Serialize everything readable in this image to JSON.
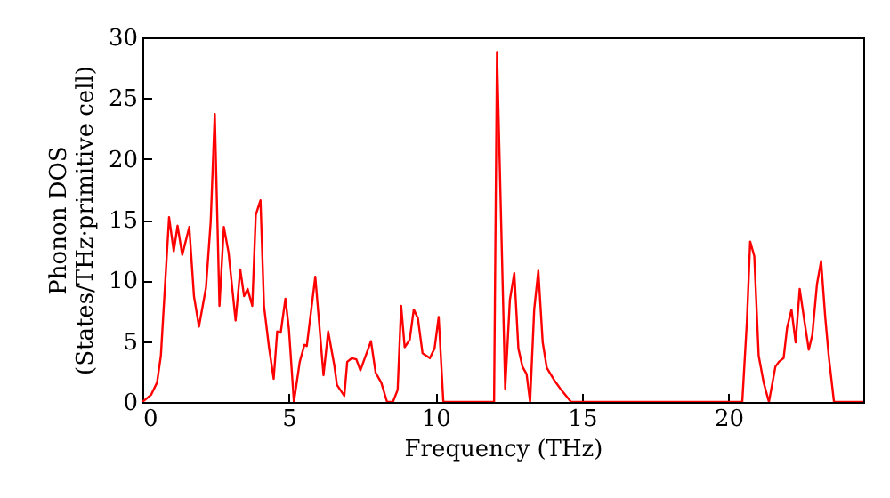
{
  "chart_data": {
    "type": "line",
    "xlabel": "Frequency (THz)",
    "ylabel": "Phonon DOS\n(States/THz·primitive cell)",
    "xlim": [
      0,
      24.6
    ],
    "ylim": [
      0,
      30
    ],
    "xticks": [
      0,
      5,
      10,
      15,
      20
    ],
    "yticks": [
      0,
      5,
      10,
      15,
      20,
      25,
      30
    ],
    "grid": false,
    "marker": "none",
    "line_style": "solid",
    "series": [
      {
        "color": "#ff0000",
        "x": [
          0,
          0.3,
          0.5,
          0.63,
          0.91,
          1.07,
          1.2,
          1.36,
          1.6,
          1.76,
          1.93,
          2.17,
          2.33,
          2.47,
          2.63,
          2.78,
          2.94,
          3.18,
          3.34,
          3.47,
          3.59,
          3.75,
          3.87,
          4.03,
          4.15,
          4.32,
          4.48,
          4.6,
          4.72,
          4.88,
          5.0,
          5.17,
          5.37,
          5.53,
          5.61,
          5.9,
          6.18,
          6.34,
          6.55,
          6.64,
          6.89,
          6.99,
          7.15,
          7.3,
          7.44,
          7.8,
          7.96,
          8.15,
          8.35,
          8.55,
          8.71,
          8.83,
          8.95,
          9.12,
          9.26,
          9.4,
          9.56,
          9.81,
          9.97,
          10.11,
          10.27,
          12.0,
          12.1,
          12.38,
          12.54,
          12.69,
          12.83,
          12.97,
          13.11,
          13.23,
          13.37,
          13.51,
          13.66,
          13.8,
          14.08,
          14.29,
          14.63,
          20.47,
          20.63,
          20.74,
          20.88,
          21.03,
          21.2,
          21.38,
          21.6,
          21.72,
          21.88,
          22.0,
          22.15,
          22.29,
          22.43,
          22.6,
          22.74,
          22.86,
          23.02,
          23.16,
          23.3,
          23.42,
          23.6,
          24.6
        ],
        "values": [
          0,
          0.6,
          1.6,
          3.8,
          15.2,
          12.4,
          14.5,
          12.1,
          14.4,
          8.7,
          6.2,
          9.4,
          14.8,
          23.7,
          7.9,
          14.4,
          12.3,
          6.7,
          10.9,
          8.7,
          9.3,
          7.9,
          15.4,
          16.6,
          7.9,
          4.5,
          1.9,
          5.8,
          5.7,
          8.5,
          6.0,
          0,
          3.3,
          4.7,
          4.6,
          10.3,
          2.2,
          5.8,
          3.0,
          1.4,
          0.5,
          3.3,
          3.6,
          3.5,
          2.6,
          5.0,
          2.4,
          1.6,
          0,
          0,
          1.0,
          7.9,
          4.5,
          5.1,
          7.6,
          6.9,
          4.0,
          3.6,
          4.4,
          7.0,
          0,
          0,
          28.8,
          1.1,
          8.4,
          10.6,
          4.4,
          2.9,
          2.3,
          0,
          7.6,
          10.8,
          4.9,
          2.8,
          1.7,
          1.0,
          0,
          0,
          6.7,
          13.2,
          12.0,
          3.8,
          1.6,
          0,
          2.9,
          3.3,
          3.6,
          6.1,
          7.6,
          4.9,
          9.3,
          6.5,
          4.3,
          5.5,
          9.7,
          11.6,
          7.0,
          3.8,
          0,
          0
        ]
      }
    ]
  }
}
